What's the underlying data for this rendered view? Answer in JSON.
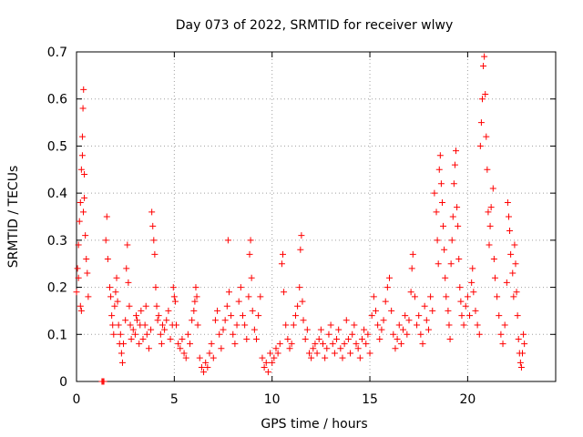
{
  "chart_data": {
    "type": "scatter",
    "title": "Day 073 of 2022, SRMTID for receiver wlwy",
    "xlabel": "GPS time / hours",
    "ylabel": "SRMTID / TECUs",
    "xlim": [
      0,
      24.5
    ],
    "ylim": [
      0,
      0.7
    ],
    "xticks": [
      0,
      5,
      10,
      15,
      20
    ],
    "xtick_labels": [
      "0",
      "5",
      "10",
      "15",
      "20"
    ],
    "yticks": [
      0,
      0.1,
      0.2,
      0.3,
      0.4,
      0.5,
      0.6,
      0.7
    ],
    "ytick_labels": [
      "0",
      "0.1",
      "0.2",
      "0.3",
      "0.4",
      "0.5",
      "0.6",
      "0.7"
    ],
    "grid": true,
    "marker": "plus",
    "color": "#ff0000",
    "series": [
      {
        "name": "SRMTID",
        "points": [
          [
            0.0,
            0.19
          ],
          [
            0.05,
            0.24
          ],
          [
            0.1,
            0.29
          ],
          [
            0.15,
            0.34
          ],
          [
            0.2,
            0.38
          ],
          [
            0.25,
            0.45
          ],
          [
            0.3,
            0.52
          ],
          [
            0.33,
            0.58
          ],
          [
            0.36,
            0.62
          ],
          [
            0.4,
            0.44
          ],
          [
            0.45,
            0.31
          ],
          [
            0.5,
            0.26
          ],
          [
            0.55,
            0.23
          ],
          [
            0.6,
            0.18
          ],
          [
            0.2,
            0.16
          ],
          [
            0.25,
            0.15
          ],
          [
            0.1,
            0.22
          ],
          [
            0.35,
            0.36
          ],
          [
            0.4,
            0.39
          ],
          [
            0.3,
            0.48
          ],
          [
            1.3,
            0.0
          ],
          [
            1.35,
            0.0
          ],
          [
            1.4,
            0.0
          ],
          [
            1.5,
            0.3
          ],
          [
            1.55,
            0.35
          ],
          [
            1.6,
            0.26
          ],
          [
            1.7,
            0.2
          ],
          [
            1.75,
            0.18
          ],
          [
            1.8,
            0.14
          ],
          [
            1.85,
            0.12
          ],
          [
            1.9,
            0.1
          ],
          [
            1.95,
            0.16
          ],
          [
            2.0,
            0.19
          ],
          [
            2.05,
            0.22
          ],
          [
            2.1,
            0.17
          ],
          [
            2.15,
            0.12
          ],
          [
            2.2,
            0.08
          ],
          [
            2.25,
            0.1
          ],
          [
            2.3,
            0.06
          ],
          [
            2.35,
            0.04
          ],
          [
            2.4,
            0.08
          ],
          [
            2.5,
            0.13
          ],
          [
            2.55,
            0.24
          ],
          [
            2.6,
            0.29
          ],
          [
            2.65,
            0.21
          ],
          [
            2.7,
            0.16
          ],
          [
            2.75,
            0.12
          ],
          [
            2.8,
            0.09
          ],
          [
            2.9,
            0.11
          ],
          [
            3.0,
            0.1
          ],
          [
            3.05,
            0.14
          ],
          [
            3.1,
            0.13
          ],
          [
            3.2,
            0.08
          ],
          [
            3.25,
            0.12
          ],
          [
            3.3,
            0.15
          ],
          [
            3.4,
            0.09
          ],
          [
            3.5,
            0.12
          ],
          [
            3.55,
            0.16
          ],
          [
            3.6,
            0.1
          ],
          [
            3.7,
            0.07
          ],
          [
            3.8,
            0.11
          ],
          [
            3.85,
            0.36
          ],
          [
            3.9,
            0.33
          ],
          [
            3.95,
            0.3
          ],
          [
            4.0,
            0.27
          ],
          [
            4.05,
            0.2
          ],
          [
            4.1,
            0.16
          ],
          [
            4.15,
            0.13
          ],
          [
            4.2,
            0.14
          ],
          [
            4.3,
            0.1
          ],
          [
            4.35,
            0.08
          ],
          [
            4.4,
            0.12
          ],
          [
            4.5,
            0.11
          ],
          [
            4.6,
            0.13
          ],
          [
            4.7,
            0.15
          ],
          [
            4.8,
            0.09
          ],
          [
            4.9,
            0.12
          ],
          [
            4.95,
            0.2
          ],
          [
            5.0,
            0.18
          ],
          [
            5.05,
            0.17
          ],
          [
            5.1,
            0.12
          ],
          [
            5.2,
            0.08
          ],
          [
            5.3,
            0.07
          ],
          [
            5.4,
            0.09
          ],
          [
            5.5,
            0.06
          ],
          [
            5.6,
            0.05
          ],
          [
            5.7,
            0.1
          ],
          [
            5.8,
            0.08
          ],
          [
            5.9,
            0.13
          ],
          [
            6.0,
            0.15
          ],
          [
            6.05,
            0.17
          ],
          [
            6.1,
            0.2
          ],
          [
            6.15,
            0.18
          ],
          [
            6.2,
            0.12
          ],
          [
            6.3,
            0.05
          ],
          [
            6.4,
            0.03
          ],
          [
            6.5,
            0.02
          ],
          [
            6.6,
            0.04
          ],
          [
            6.7,
            0.03
          ],
          [
            6.8,
            0.06
          ],
          [
            6.9,
            0.08
          ],
          [
            7.0,
            0.05
          ],
          [
            7.1,
            0.13
          ],
          [
            7.2,
            0.15
          ],
          [
            7.3,
            0.1
          ],
          [
            7.4,
            0.07
          ],
          [
            7.5,
            0.11
          ],
          [
            7.6,
            0.13
          ],
          [
            7.7,
            0.16
          ],
          [
            7.75,
            0.3
          ],
          [
            7.8,
            0.19
          ],
          [
            7.9,
            0.14
          ],
          [
            8.0,
            0.1
          ],
          [
            8.1,
            0.08
          ],
          [
            8.2,
            0.12
          ],
          [
            8.3,
            0.17
          ],
          [
            8.4,
            0.2
          ],
          [
            8.5,
            0.14
          ],
          [
            8.6,
            0.12
          ],
          [
            8.7,
            0.09
          ],
          [
            8.8,
            0.18
          ],
          [
            8.85,
            0.27
          ],
          [
            8.9,
            0.3
          ],
          [
            8.95,
            0.22
          ],
          [
            9.0,
            0.15
          ],
          [
            9.1,
            0.11
          ],
          [
            9.2,
            0.09
          ],
          [
            9.3,
            0.14
          ],
          [
            9.4,
            0.18
          ],
          [
            9.5,
            0.05
          ],
          [
            9.6,
            0.03
          ],
          [
            9.7,
            0.04
          ],
          [
            9.8,
            0.02
          ],
          [
            9.9,
            0.06
          ],
          [
            10.0,
            0.04
          ],
          [
            10.1,
            0.05
          ],
          [
            10.2,
            0.07
          ],
          [
            10.3,
            0.06
          ],
          [
            10.4,
            0.08
          ],
          [
            10.5,
            0.25
          ],
          [
            10.55,
            0.27
          ],
          [
            10.6,
            0.19
          ],
          [
            10.7,
            0.12
          ],
          [
            10.8,
            0.09
          ],
          [
            10.9,
            0.07
          ],
          [
            11.0,
            0.08
          ],
          [
            11.1,
            0.12
          ],
          [
            11.2,
            0.14
          ],
          [
            11.3,
            0.16
          ],
          [
            11.4,
            0.2
          ],
          [
            11.45,
            0.28
          ],
          [
            11.5,
            0.31
          ],
          [
            11.55,
            0.17
          ],
          [
            11.6,
            0.13
          ],
          [
            11.7,
            0.09
          ],
          [
            11.8,
            0.11
          ],
          [
            11.9,
            0.06
          ],
          [
            12.0,
            0.05
          ],
          [
            12.1,
            0.07
          ],
          [
            12.2,
            0.08
          ],
          [
            12.3,
            0.06
          ],
          [
            12.4,
            0.09
          ],
          [
            12.5,
            0.11
          ],
          [
            12.6,
            0.08
          ],
          [
            12.7,
            0.05
          ],
          [
            12.8,
            0.07
          ],
          [
            12.9,
            0.1
          ],
          [
            13.0,
            0.12
          ],
          [
            13.1,
            0.08
          ],
          [
            13.2,
            0.06
          ],
          [
            13.3,
            0.09
          ],
          [
            13.4,
            0.11
          ],
          [
            13.5,
            0.07
          ],
          [
            13.6,
            0.05
          ],
          [
            13.7,
            0.08
          ],
          [
            13.8,
            0.13
          ],
          [
            13.9,
            0.09
          ],
          [
            14.0,
            0.06
          ],
          [
            14.1,
            0.1
          ],
          [
            14.2,
            0.12
          ],
          [
            14.3,
            0.08
          ],
          [
            14.4,
            0.07
          ],
          [
            14.5,
            0.05
          ],
          [
            14.6,
            0.09
          ],
          [
            14.7,
            0.11
          ],
          [
            14.8,
            0.08
          ],
          [
            14.9,
            0.1
          ],
          [
            15.0,
            0.06
          ],
          [
            15.1,
            0.14
          ],
          [
            15.2,
            0.18
          ],
          [
            15.3,
            0.15
          ],
          [
            15.4,
            0.12
          ],
          [
            15.5,
            0.09
          ],
          [
            15.6,
            0.11
          ],
          [
            15.7,
            0.13
          ],
          [
            15.8,
            0.17
          ],
          [
            15.9,
            0.2
          ],
          [
            16.0,
            0.22
          ],
          [
            16.1,
            0.15
          ],
          [
            16.2,
            0.1
          ],
          [
            16.3,
            0.07
          ],
          [
            16.4,
            0.09
          ],
          [
            16.5,
            0.12
          ],
          [
            16.6,
            0.08
          ],
          [
            16.7,
            0.11
          ],
          [
            16.8,
            0.14
          ],
          [
            16.9,
            0.1
          ],
          [
            17.0,
            0.13
          ],
          [
            17.1,
            0.19
          ],
          [
            17.15,
            0.24
          ],
          [
            17.2,
            0.27
          ],
          [
            17.3,
            0.18
          ],
          [
            17.4,
            0.12
          ],
          [
            17.5,
            0.14
          ],
          [
            17.6,
            0.1
          ],
          [
            17.7,
            0.08
          ],
          [
            17.8,
            0.16
          ],
          [
            17.9,
            0.13
          ],
          [
            18.0,
            0.11
          ],
          [
            18.1,
            0.18
          ],
          [
            18.2,
            0.15
          ],
          [
            18.3,
            0.4
          ],
          [
            18.4,
            0.36
          ],
          [
            18.45,
            0.3
          ],
          [
            18.5,
            0.25
          ],
          [
            18.55,
            0.45
          ],
          [
            18.6,
            0.48
          ],
          [
            18.65,
            0.42
          ],
          [
            18.7,
            0.38
          ],
          [
            18.75,
            0.33
          ],
          [
            18.8,
            0.28
          ],
          [
            18.85,
            0.22
          ],
          [
            18.9,
            0.18
          ],
          [
            19.0,
            0.15
          ],
          [
            19.05,
            0.12
          ],
          [
            19.1,
            0.09
          ],
          [
            19.15,
            0.25
          ],
          [
            19.2,
            0.3
          ],
          [
            19.25,
            0.35
          ],
          [
            19.3,
            0.42
          ],
          [
            19.35,
            0.46
          ],
          [
            19.4,
            0.49
          ],
          [
            19.45,
            0.37
          ],
          [
            19.5,
            0.33
          ],
          [
            19.55,
            0.26
          ],
          [
            19.6,
            0.2
          ],
          [
            19.65,
            0.17
          ],
          [
            19.7,
            0.14
          ],
          [
            19.8,
            0.12
          ],
          [
            19.9,
            0.16
          ],
          [
            20.0,
            0.18
          ],
          [
            20.1,
            0.14
          ],
          [
            20.2,
            0.21
          ],
          [
            20.25,
            0.24
          ],
          [
            20.3,
            0.19
          ],
          [
            20.4,
            0.15
          ],
          [
            20.5,
            0.12
          ],
          [
            20.6,
            0.1
          ],
          [
            20.65,
            0.5
          ],
          [
            20.7,
            0.55
          ],
          [
            20.75,
            0.6
          ],
          [
            20.8,
            0.67
          ],
          [
            20.85,
            0.69
          ],
          [
            20.9,
            0.61
          ],
          [
            20.95,
            0.52
          ],
          [
            21.0,
            0.45
          ],
          [
            21.05,
            0.36
          ],
          [
            21.1,
            0.29
          ],
          [
            21.15,
            0.33
          ],
          [
            21.2,
            0.37
          ],
          [
            21.3,
            0.41
          ],
          [
            21.35,
            0.26
          ],
          [
            21.4,
            0.22
          ],
          [
            21.5,
            0.18
          ],
          [
            21.6,
            0.14
          ],
          [
            21.7,
            0.1
          ],
          [
            21.8,
            0.08
          ],
          [
            21.9,
            0.12
          ],
          [
            22.0,
            0.21
          ],
          [
            22.05,
            0.38
          ],
          [
            22.1,
            0.35
          ],
          [
            22.15,
            0.32
          ],
          [
            22.2,
            0.27
          ],
          [
            22.3,
            0.23
          ],
          [
            22.35,
            0.18
          ],
          [
            22.4,
            0.29
          ],
          [
            22.45,
            0.25
          ],
          [
            22.5,
            0.19
          ],
          [
            22.55,
            0.14
          ],
          [
            22.6,
            0.09
          ],
          [
            22.65,
            0.06
          ],
          [
            22.7,
            0.04
          ],
          [
            22.75,
            0.03
          ],
          [
            22.8,
            0.06
          ],
          [
            22.85,
            0.1
          ],
          [
            22.9,
            0.08
          ]
        ]
      }
    ]
  }
}
